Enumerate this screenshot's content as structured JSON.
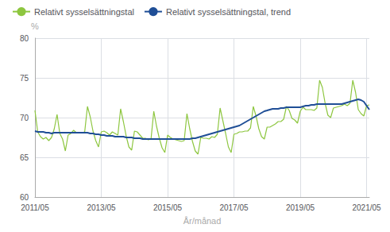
{
  "chart_data": {
    "type": "line",
    "xlabel": "År/månad",
    "ylabel": "%",
    "categories": [
      "2011/05",
      null,
      null,
      null,
      null,
      null,
      null,
      null,
      null,
      null,
      null,
      null,
      null,
      null,
      null,
      null,
      null,
      null,
      null,
      null,
      null,
      null,
      null,
      null,
      "2013/05",
      null,
      null,
      null,
      null,
      null,
      null,
      null,
      null,
      null,
      null,
      null,
      null,
      null,
      null,
      null,
      null,
      null,
      null,
      null,
      null,
      null,
      null,
      null,
      "2015/05",
      null,
      null,
      null,
      null,
      null,
      null,
      null,
      null,
      null,
      null,
      null,
      null,
      null,
      null,
      null,
      null,
      null,
      null,
      null,
      null,
      null,
      null,
      null,
      "2017/05",
      null,
      null,
      null,
      null,
      null,
      null,
      null,
      null,
      null,
      null,
      null,
      null,
      null,
      null,
      null,
      null,
      null,
      null,
      null,
      null,
      null,
      null,
      null,
      "2019/05",
      null,
      null,
      null,
      null,
      null,
      null,
      null,
      null,
      null,
      null,
      null,
      null,
      null,
      null,
      null,
      null,
      null,
      null,
      null,
      null,
      null,
      null,
      null,
      "2021/05",
      null
    ],
    "series": [
      {
        "name": "Relativt sysselsättningstal",
        "color": "#8dc63f",
        "values": [
          70.9,
          68.2,
          67.6,
          67.3,
          67.5,
          67.1,
          67.5,
          68.6,
          70.4,
          68.0,
          67.3,
          65.8,
          67.8,
          68.0,
          68.4,
          68.1,
          68.1,
          68.1,
          68.2,
          71.4,
          70.1,
          68.3,
          67.1,
          66.3,
          68.2,
          68.3,
          68.1,
          67.8,
          68.2,
          68.0,
          67.8,
          71.1,
          69.5,
          67.7,
          66.3,
          65.9,
          68.3,
          68.2,
          67.8,
          67.4,
          67.4,
          67.2,
          67.3,
          70.8,
          68.9,
          67.4,
          66.2,
          65.6,
          67.8,
          67.5,
          67.3,
          67.2,
          67.1,
          67.0,
          67.1,
          70.5,
          68.6,
          67.0,
          65.8,
          65.4,
          67.5,
          67.4,
          67.4,
          67.3,
          67.6,
          67.5,
          67.9,
          71.2,
          69.6,
          68.0,
          66.3,
          65.6,
          67.9,
          68.0,
          68.2,
          68.2,
          68.3,
          68.3,
          68.7,
          71.4,
          70.2,
          68.6,
          67.6,
          67.3,
          68.8,
          68.8,
          69.0,
          69.2,
          69.5,
          69.5,
          69.8,
          71.4,
          70.9,
          69.9,
          69.7,
          69.3,
          70.8,
          71.3,
          71.0,
          71.0,
          71.0,
          70.9,
          71.2,
          74.7,
          73.8,
          71.8,
          70.3,
          70.0,
          71.2,
          71.3,
          71.4,
          71.5,
          71.7,
          71.5,
          71.8,
          74.7,
          73.2,
          71.0,
          70.5,
          70.2,
          71.5,
          71.6
        ]
      },
      {
        "name": "Relativt sysselsättningstal, trend",
        "color": "#1f4e96",
        "values": [
          68.3,
          68.2,
          68.2,
          68.2,
          68.1,
          68.1,
          68.0,
          68.1,
          68.1,
          68.1,
          68.1,
          68.1,
          68.1,
          68.1,
          68.1,
          68.1,
          68.1,
          68.1,
          68.1,
          68.1,
          68.0,
          68.0,
          67.9,
          67.9,
          67.8,
          67.8,
          67.7,
          67.7,
          67.7,
          67.6,
          67.6,
          67.6,
          67.6,
          67.5,
          67.5,
          67.5,
          67.4,
          67.4,
          67.4,
          67.3,
          67.3,
          67.3,
          67.3,
          67.3,
          67.3,
          67.3,
          67.3,
          67.3,
          67.3,
          67.3,
          67.3,
          67.3,
          67.3,
          67.3,
          67.3,
          67.3,
          67.3,
          67.4,
          67.4,
          67.5,
          67.6,
          67.7,
          67.8,
          67.9,
          68.0,
          68.1,
          68.2,
          68.3,
          68.4,
          68.5,
          68.6,
          68.7,
          68.8,
          68.9,
          69.0,
          69.2,
          69.4,
          69.6,
          69.8,
          70.0,
          70.2,
          70.4,
          70.6,
          70.8,
          70.9,
          71.0,
          71.1,
          71.1,
          71.1,
          71.2,
          71.2,
          71.3,
          71.3,
          71.3,
          71.3,
          71.3,
          71.3,
          71.4,
          71.5,
          71.5,
          71.6,
          71.6,
          71.7,
          71.7,
          71.7,
          71.7,
          71.7,
          71.7,
          71.7,
          71.7,
          71.7,
          71.7,
          71.8,
          71.9,
          72.0,
          72.1,
          72.2,
          72.3,
          72.2,
          72.0,
          71.5,
          71.0
        ]
      }
    ],
    "ylim": [
      60,
      80
    ],
    "yticks": [
      60,
      65,
      70,
      75,
      80
    ],
    "grid": true,
    "legend": "upper left"
  }
}
